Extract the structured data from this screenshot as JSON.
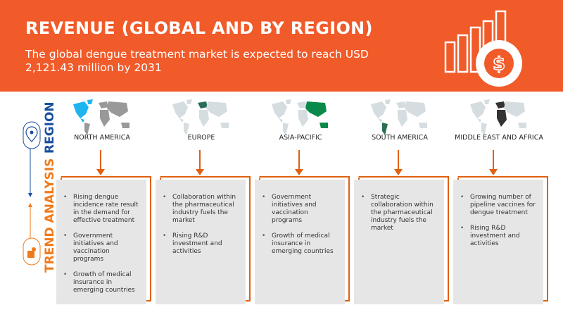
{
  "header": {
    "title": "REVENUE (GLOBAL AND BY REGION)",
    "subtitle": "The global dengue treatment market is expected to reach USD 2,121.43 million by 2031",
    "icon": "revenue-growth-dollar-icon"
  },
  "side": {
    "region_label": "REGION",
    "trend_label": "TREND ANALYSIS",
    "region_color": "#1a4fa0",
    "trend_color": "#f07a1a"
  },
  "colors": {
    "accent": "#f15a29",
    "arrow": "#e06010",
    "box": "#e6e6e6"
  },
  "regions": [
    {
      "name": "NORTH AMERICA",
      "highlight": "#1eb4f0",
      "base": "#999999",
      "trends": [
        "Rising dengue incidence rate result in the demand for effective treatment",
        "Government initiatives and vaccination programs",
        "Growth of medical insurance in emerging countries"
      ]
    },
    {
      "name": "EUROPE",
      "highlight": "#2a6b5c",
      "base": "#d5dde0",
      "trends": [
        "Collaboration within the pharmaceutical industry fuels the market",
        "Rising R&D investment and activities"
      ]
    },
    {
      "name": "ASIA-PACIFIC",
      "highlight": "#0a8a4a",
      "base": "#d5dde0",
      "trends": [
        "Government initiatives and vaccination programs",
        "Growth of medical insurance in emerging countries"
      ]
    },
    {
      "name": "SOUTH AMERICA",
      "highlight": "#2a7050",
      "base": "#d5dde0",
      "trends": [
        "Strategic collaboration within the pharmaceutical industry fuels the market"
      ]
    },
    {
      "name": "MIDDLE EAST AND AFRICA",
      "highlight": "#333333",
      "base": "#d5dde0",
      "trends": [
        "Growing number of pipeline vaccines for dengue treatment",
        "Rising R&D investment and activities"
      ]
    }
  ]
}
